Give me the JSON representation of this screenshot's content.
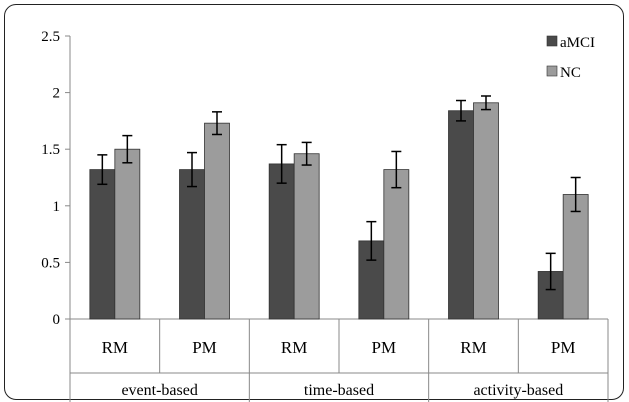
{
  "chart_data": {
    "type": "bar",
    "title": "",
    "xlabel": "",
    "ylabel": "",
    "ylim": [
      0,
      2.5
    ],
    "yticks": [
      0,
      0.5,
      1,
      1.5,
      2,
      2.5
    ],
    "ytick_labels": [
      "0",
      "0.5",
      "1",
      "1.5",
      "2",
      "2.5"
    ],
    "categories": [
      "RM",
      "PM",
      "RM",
      "PM",
      "RM",
      "PM"
    ],
    "groups": [
      {
        "label": "event-based",
        "categories": [
          "RM",
          "PM"
        ]
      },
      {
        "label": "time-based",
        "categories": [
          "RM",
          "PM"
        ]
      },
      {
        "label": "activity-based",
        "categories": [
          "RM",
          "PM"
        ]
      }
    ],
    "series": [
      {
        "name": "aMCI",
        "color": "#4a4a4a",
        "values": [
          1.32,
          1.32,
          1.37,
          0.69,
          1.84,
          0.42
        ],
        "errors": [
          0.13,
          0.15,
          0.17,
          0.17,
          0.09,
          0.16
        ]
      },
      {
        "name": "NC",
        "color": "#9c9c9c",
        "values": [
          1.5,
          1.73,
          1.46,
          1.32,
          1.91,
          1.1
        ],
        "errors": [
          0.12,
          0.1,
          0.1,
          0.16,
          0.06,
          0.15
        ]
      }
    ],
    "grid": false,
    "legend_position": "top-right",
    "error_bars": true
  }
}
